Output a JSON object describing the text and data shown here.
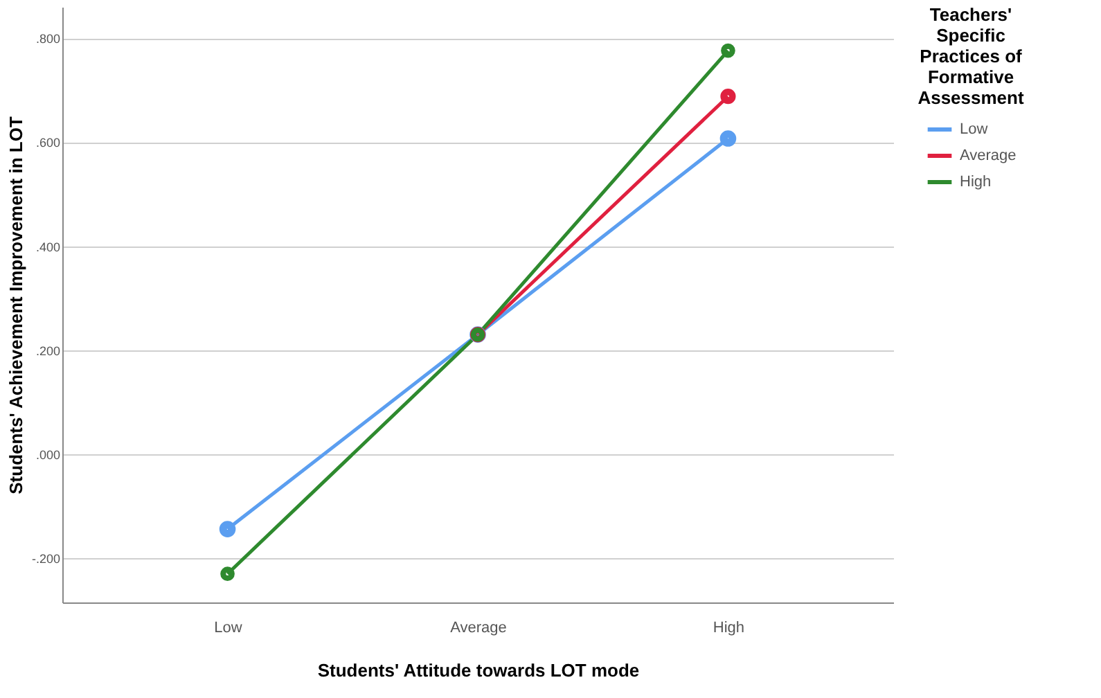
{
  "chart_data": {
    "type": "line",
    "xlabel": "Students' Attitude towards LOT mode",
    "ylabel": "Students' Achievement Improvement in LOT",
    "legend_title": "Teachers' Specific Practices of Formative Assessment",
    "categories": [
      "Low",
      "Average",
      "High"
    ],
    "series": [
      {
        "name": "Low",
        "color": "#5b9ef0",
        "values": [
          -0.144,
          0.23,
          0.607
        ]
      },
      {
        "name": "Average",
        "color": "#e0203f",
        "values": [
          null,
          0.23,
          0.688
        ]
      },
      {
        "name": "High",
        "color": "#2e8a2e",
        "values": [
          -0.23,
          0.23,
          0.776
        ]
      }
    ],
    "ylim": [
      -0.285,
      0.86
    ],
    "yticks": [
      {
        "value": -0.2,
        "label": "-.200"
      },
      {
        "value": 0,
        "label": ".000"
      },
      {
        "value": 0.2,
        "label": ".200"
      },
      {
        "value": 0.4,
        "label": ".400"
      },
      {
        "value": 0.6,
        "label": ".600"
      },
      {
        "value": 0.8,
        "label": ".800"
      }
    ],
    "grid": "y",
    "legend": "top right",
    "marker": "circle",
    "line_style": "solid"
  }
}
